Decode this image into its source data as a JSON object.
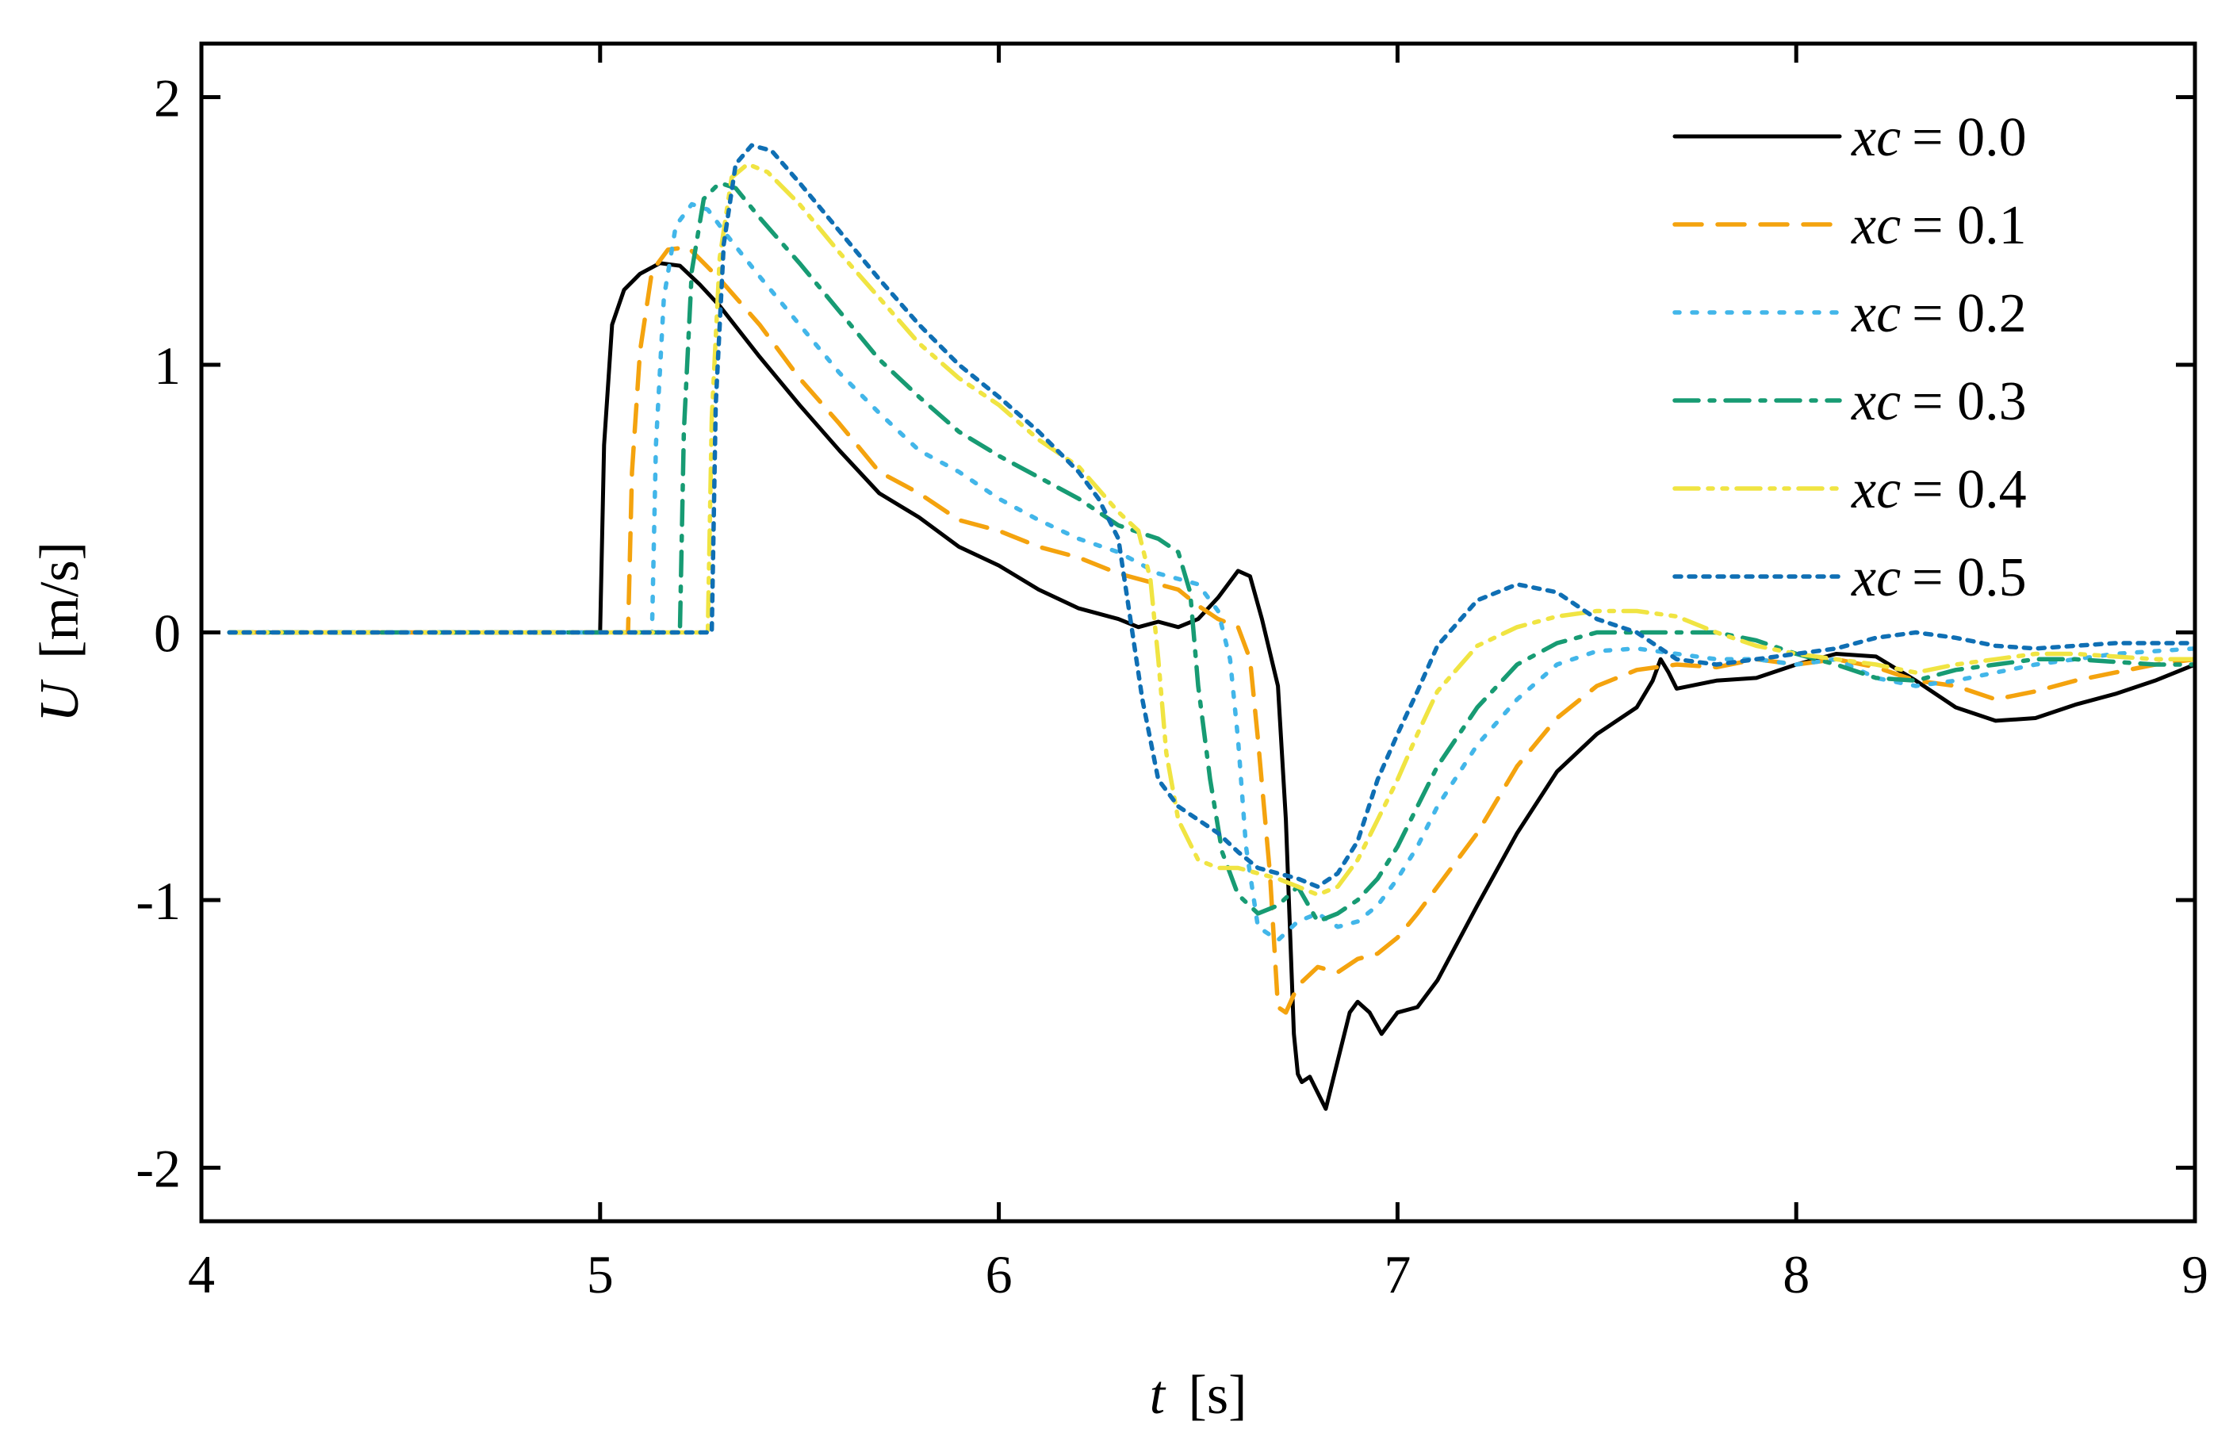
{
  "chart_data": {
    "type": "line",
    "title": "",
    "xlabel": {
      "symbol": "t",
      "unit": "[s]"
    },
    "ylabel": {
      "symbol": "U",
      "unit": "[m/s]"
    },
    "xlim": [
      4,
      9
    ],
    "ylim": [
      -2.2,
      2.2
    ],
    "xticks": [
      4,
      5,
      6,
      7,
      8,
      9
    ],
    "xtick_labels": [
      "4",
      "5",
      "6",
      "7",
      "8",
      "9"
    ],
    "yticks": [
      -2,
      -1,
      0,
      1,
      2
    ],
    "ytick_labels": [
      "-2",
      "-1",
      "0",
      "1",
      "2"
    ],
    "grid": false,
    "legend_position": "top-right",
    "series": [
      {
        "name": "xc = 0.0",
        "var": "xc",
        "value_label": "= 0.0",
        "color": "#000000",
        "dash": "solid",
        "x": [
          4.07,
          5.0,
          5.01,
          5.03,
          5.06,
          5.1,
          5.15,
          5.2,
          5.25,
          5.3,
          5.4,
          5.5,
          5.6,
          5.7,
          5.8,
          5.9,
          6.0,
          6.1,
          6.2,
          6.3,
          6.35,
          6.4,
          6.45,
          6.5,
          6.55,
          6.6,
          6.63,
          6.66,
          6.7,
          6.72,
          6.74,
          6.75,
          6.76,
          6.78,
          6.8,
          6.82,
          6.85,
          6.88,
          6.9,
          6.93,
          6.96,
          6.98,
          7.0,
          7.05,
          7.1,
          7.2,
          7.3,
          7.4,
          7.5,
          7.6,
          7.64,
          7.66,
          7.68,
          7.7,
          7.8,
          7.9,
          8.0,
          8.1,
          8.2,
          8.3,
          8.4,
          8.5,
          8.6,
          8.7,
          8.8,
          8.9,
          9.0
        ],
        "y": [
          0,
          0,
          0.7,
          1.15,
          1.28,
          1.34,
          1.38,
          1.37,
          1.3,
          1.22,
          1.03,
          0.85,
          0.68,
          0.52,
          0.43,
          0.32,
          0.25,
          0.16,
          0.09,
          0.05,
          0.02,
          0.04,
          0.02,
          0.05,
          0.13,
          0.23,
          0.21,
          0.05,
          -0.2,
          -0.7,
          -1.5,
          -1.65,
          -1.68,
          -1.66,
          -1.72,
          -1.78,
          -1.6,
          -1.42,
          -1.38,
          -1.42,
          -1.5,
          -1.46,
          -1.42,
          -1.4,
          -1.3,
          -1.02,
          -0.75,
          -0.52,
          -0.38,
          -0.28,
          -0.18,
          -0.1,
          -0.15,
          -0.21,
          -0.18,
          -0.17,
          -0.12,
          -0.08,
          -0.09,
          -0.18,
          -0.28,
          -0.33,
          -0.32,
          -0.27,
          -0.23,
          -0.18,
          -0.12
        ]
      },
      {
        "name": "xc = 0.1",
        "var": "xc",
        "value_label": "= 0.1",
        "color": "#f4a30e",
        "dash": "dashed",
        "x": [
          4.07,
          5.07,
          5.08,
          5.1,
          5.13,
          5.17,
          5.22,
          5.3,
          5.4,
          5.5,
          5.6,
          5.7,
          5.8,
          5.9,
          6.0,
          6.1,
          6.2,
          6.3,
          6.4,
          6.45,
          6.5,
          6.55,
          6.6,
          6.63,
          6.65,
          6.68,
          6.7,
          6.72,
          6.75,
          6.8,
          6.85,
          6.9,
          6.95,
          7.0,
          7.05,
          7.1,
          7.2,
          7.3,
          7.4,
          7.5,
          7.6,
          7.7,
          7.8,
          7.9,
          8.0,
          8.1,
          8.2,
          8.3,
          8.4,
          8.5,
          8.6,
          8.7,
          8.8,
          8.9,
          9.0
        ],
        "y": [
          0,
          0,
          0.6,
          1.05,
          1.35,
          1.43,
          1.44,
          1.32,
          1.15,
          0.95,
          0.78,
          0.6,
          0.52,
          0.42,
          0.38,
          0.32,
          0.28,
          0.22,
          0.18,
          0.16,
          0.1,
          0.05,
          0.02,
          -0.1,
          -0.4,
          -0.9,
          -1.4,
          -1.42,
          -1.32,
          -1.25,
          -1.27,
          -1.22,
          -1.2,
          -1.14,
          -1.05,
          -0.95,
          -0.75,
          -0.5,
          -0.32,
          -0.2,
          -0.14,
          -0.12,
          -0.13,
          -0.1,
          -0.12,
          -0.1,
          -0.13,
          -0.18,
          -0.2,
          -0.25,
          -0.22,
          -0.18,
          -0.15,
          -0.12,
          -0.1
        ]
      },
      {
        "name": "xc = 0.2",
        "var": "xc",
        "value_label": "= 0.2",
        "color": "#42b6e9",
        "dash": "dotted",
        "x": [
          4.07,
          5.13,
          5.14,
          5.16,
          5.19,
          5.23,
          5.27,
          5.32,
          5.4,
          5.5,
          5.6,
          5.7,
          5.8,
          5.9,
          6.0,
          6.1,
          6.2,
          6.3,
          6.4,
          6.5,
          6.55,
          6.58,
          6.6,
          6.62,
          6.65,
          6.7,
          6.75,
          6.8,
          6.85,
          6.9,
          6.95,
          7.0,
          7.05,
          7.1,
          7.2,
          7.3,
          7.4,
          7.5,
          7.6,
          7.7,
          7.8,
          7.9,
          8.0,
          8.1,
          8.2,
          8.3,
          8.4,
          8.5,
          8.6,
          8.7,
          8.8,
          8.9,
          9.0
        ],
        "y": [
          0,
          0,
          0.7,
          1.25,
          1.52,
          1.6,
          1.58,
          1.48,
          1.33,
          1.15,
          0.97,
          0.82,
          0.68,
          0.6,
          0.5,
          0.42,
          0.35,
          0.3,
          0.22,
          0.18,
          0.08,
          -0.1,
          -0.4,
          -0.8,
          -1.1,
          -1.15,
          -1.08,
          -1.05,
          -1.1,
          -1.08,
          -1.02,
          -0.92,
          -0.8,
          -0.65,
          -0.42,
          -0.25,
          -0.12,
          -0.07,
          -0.06,
          -0.08,
          -0.1,
          -0.1,
          -0.12,
          -0.1,
          -0.17,
          -0.2,
          -0.18,
          -0.15,
          -0.12,
          -0.1,
          -0.08,
          -0.07,
          -0.06
        ]
      },
      {
        "name": "xc = 0.3",
        "var": "xc",
        "value_label": "= 0.3",
        "color": "#179b73",
        "dash": "dashdot",
        "x": [
          4.07,
          5.2,
          5.21,
          5.23,
          5.26,
          5.3,
          5.34,
          5.4,
          5.5,
          5.6,
          5.7,
          5.8,
          5.9,
          6.0,
          6.1,
          6.2,
          6.3,
          6.4,
          6.45,
          6.48,
          6.5,
          6.53,
          6.56,
          6.6,
          6.65,
          6.7,
          6.75,
          6.8,
          6.85,
          6.9,
          6.95,
          7.0,
          7.05,
          7.1,
          7.2,
          7.3,
          7.4,
          7.5,
          7.6,
          7.7,
          7.8,
          7.9,
          8.0,
          8.1,
          8.2,
          8.3,
          8.4,
          8.5,
          8.6,
          8.7,
          8.8,
          8.9,
          9.0
        ],
        "y": [
          0,
          0,
          0.75,
          1.35,
          1.62,
          1.68,
          1.66,
          1.55,
          1.38,
          1.2,
          1.02,
          0.88,
          0.75,
          0.66,
          0.58,
          0.5,
          0.4,
          0.35,
          0.3,
          0.15,
          -0.2,
          -0.55,
          -0.82,
          -0.98,
          -1.05,
          -1.02,
          -0.95,
          -1.08,
          -1.05,
          -1.0,
          -0.92,
          -0.8,
          -0.65,
          -0.5,
          -0.28,
          -0.12,
          -0.04,
          0.0,
          0.0,
          0.0,
          0.0,
          -0.03,
          -0.08,
          -0.12,
          -0.17,
          -0.18,
          -0.14,
          -0.12,
          -0.1,
          -0.1,
          -0.11,
          -0.12,
          -0.12
        ]
      },
      {
        "name": "xc = 0.4",
        "var": "xc",
        "value_label": "= 0.4",
        "color": "#f0e442",
        "dash": "dashdotdot",
        "x": [
          4.07,
          5.27,
          5.28,
          5.3,
          5.33,
          5.37,
          5.42,
          5.5,
          5.6,
          5.7,
          5.8,
          5.9,
          6.0,
          6.1,
          6.2,
          6.3,
          6.35,
          6.38,
          6.4,
          6.42,
          6.45,
          6.5,
          6.55,
          6.6,
          6.65,
          6.7,
          6.75,
          6.8,
          6.85,
          6.9,
          6.95,
          7.0,
          7.05,
          7.1,
          7.2,
          7.3,
          7.4,
          7.5,
          7.6,
          7.7,
          7.8,
          7.9,
          8.0,
          8.1,
          8.2,
          8.3,
          8.4,
          8.5,
          8.6,
          8.7,
          8.8,
          8.9,
          9.0
        ],
        "y": [
          0,
          0,
          0.8,
          1.4,
          1.7,
          1.75,
          1.72,
          1.6,
          1.42,
          1.25,
          1.08,
          0.95,
          0.85,
          0.72,
          0.62,
          0.45,
          0.38,
          0.2,
          -0.1,
          -0.45,
          -0.7,
          -0.85,
          -0.88,
          -0.88,
          -0.9,
          -0.92,
          -0.95,
          -0.98,
          -0.95,
          -0.85,
          -0.7,
          -0.55,
          -0.38,
          -0.22,
          -0.05,
          0.02,
          0.06,
          0.08,
          0.08,
          0.06,
          0.0,
          -0.05,
          -0.08,
          -0.1,
          -0.12,
          -0.15,
          -0.12,
          -0.1,
          -0.08,
          -0.08,
          -0.09,
          -0.1,
          -0.1
        ]
      },
      {
        "name": "xc = 0.5",
        "var": "xc",
        "value_label": "= 0.5",
        "color": "#0f6fb4",
        "dash": "shortdot",
        "x": [
          4.07,
          5.28,
          5.29,
          5.31,
          5.34,
          5.38,
          5.43,
          5.5,
          5.6,
          5.7,
          5.8,
          5.9,
          6.0,
          6.1,
          6.2,
          6.25,
          6.3,
          6.33,
          6.36,
          6.4,
          6.45,
          6.5,
          6.55,
          6.6,
          6.65,
          6.7,
          6.75,
          6.8,
          6.85,
          6.9,
          6.95,
          7.0,
          7.05,
          7.1,
          7.2,
          7.3,
          7.4,
          7.5,
          7.6,
          7.65,
          7.7,
          7.8,
          7.9,
          8.0,
          8.1,
          8.2,
          8.3,
          8.4,
          8.5,
          8.6,
          8.7,
          8.8,
          8.9,
          9.0
        ],
        "y": [
          0,
          0,
          0.85,
          1.45,
          1.75,
          1.82,
          1.8,
          1.68,
          1.5,
          1.32,
          1.15,
          1.0,
          0.88,
          0.75,
          0.6,
          0.5,
          0.35,
          0.05,
          -0.25,
          -0.55,
          -0.65,
          -0.7,
          -0.75,
          -0.82,
          -0.88,
          -0.9,
          -0.92,
          -0.95,
          -0.9,
          -0.78,
          -0.55,
          -0.38,
          -0.22,
          -0.05,
          0.12,
          0.18,
          0.15,
          0.05,
          0.0,
          -0.05,
          -0.1,
          -0.12,
          -0.1,
          -0.08,
          -0.06,
          -0.02,
          0.0,
          -0.02,
          -0.05,
          -0.06,
          -0.05,
          -0.04,
          -0.04,
          -0.04
        ]
      }
    ]
  }
}
